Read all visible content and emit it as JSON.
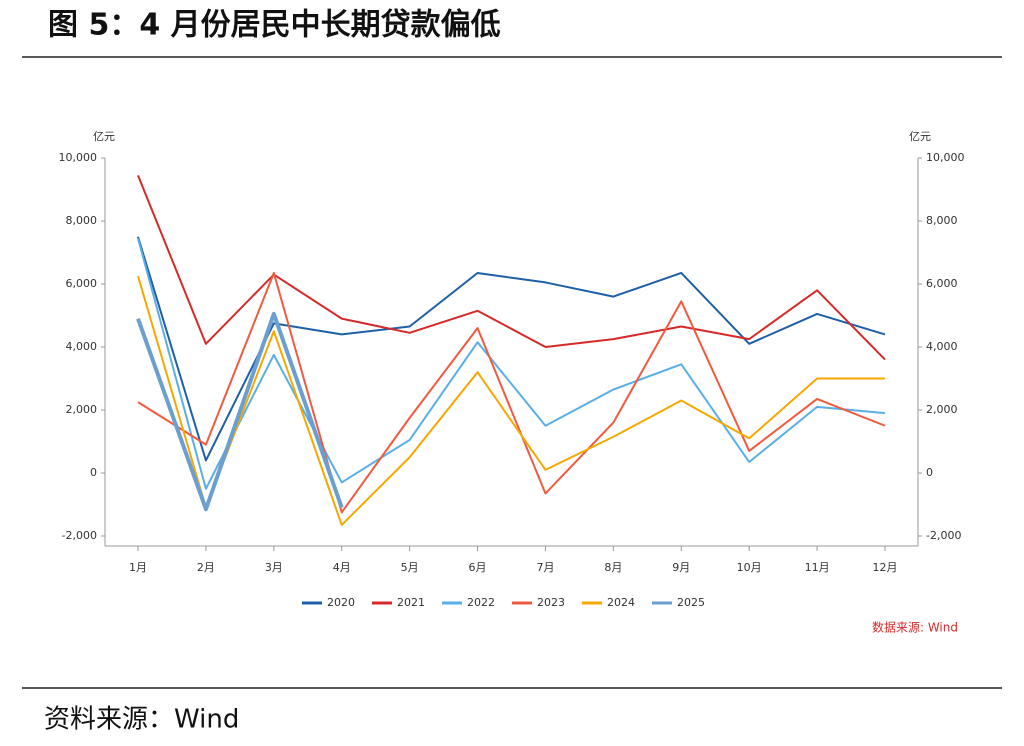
{
  "header": {
    "title": "图 5：4 月份居民中长期贷款偏低"
  },
  "chart_data": {
    "type": "line",
    "y_unit": "亿元",
    "y2_unit": "亿元",
    "categories": [
      "1月",
      "2月",
      "3月",
      "4月",
      "5月",
      "6月",
      "7月",
      "8月",
      "9月",
      "10月",
      "11月",
      "12月"
    ],
    "series": [
      {
        "name": "2020",
        "color": "#1f5fa8",
        "values": [
          7500,
          400,
          4750,
          4400,
          4650,
          6350,
          6050,
          5600,
          6350,
          4100,
          5050,
          4400
        ]
      },
      {
        "name": "2021",
        "color": "#d62a2a",
        "values": [
          9450,
          4100,
          6300,
          4900,
          4450,
          5150,
          4000,
          4250,
          4650,
          4250,
          5800,
          3600
        ]
      },
      {
        "name": "2022",
        "color": "#5aaee8",
        "values": [
          7450,
          -500,
          3750,
          -300,
          1050,
          4150,
          1500,
          2650,
          3450,
          350,
          2100,
          1900
        ]
      },
      {
        "name": "2023",
        "color": "#ef5a40",
        "values": [
          2250,
          900,
          6350,
          -1250,
          1750,
          4600,
          -650,
          1600,
          5450,
          700,
          2350,
          1500
        ]
      },
      {
        "name": "2024",
        "color": "#f5a800",
        "values": [
          6250,
          -1100,
          4500,
          -1650,
          500,
          3200,
          100,
          1150,
          2300,
          1100,
          3000,
          3000
        ]
      },
      {
        "name": "2025",
        "color": "#6a9fd0",
        "values": [
          4900,
          -1150,
          5050,
          -1100,
          null,
          null,
          null,
          null,
          null,
          null,
          null,
          null
        ]
      }
    ],
    "ylim": [
      -2000,
      10000
    ],
    "yticks": [
      {
        "value": -2000,
        "label": "-2,000"
      },
      0,
      {
        "value": 2000,
        "label": "2,000"
      },
      {
        "value": 4000,
        "label": "4,000"
      },
      {
        "value": 6000,
        "label": "6,000"
      },
      {
        "value": 8000,
        "label": "8,000"
      },
      {
        "value": 10000,
        "label": "10,000"
      }
    ],
    "y2lim": [
      -2000,
      10000
    ],
    "y2ticks": [
      {
        "value": -2000,
        "label": "-2,000"
      },
      0,
      {
        "value": 2000,
        "label": "2,000"
      },
      {
        "value": 4000,
        "label": "4,000"
      },
      {
        "value": 6000,
        "label": "6,000"
      },
      {
        "value": 8000,
        "label": "8,000"
      },
      {
        "value": 10000,
        "label": "10,000"
      }
    ],
    "note": "数据来源: Wind"
  },
  "footer": {
    "source": "资料来源：Wind"
  }
}
